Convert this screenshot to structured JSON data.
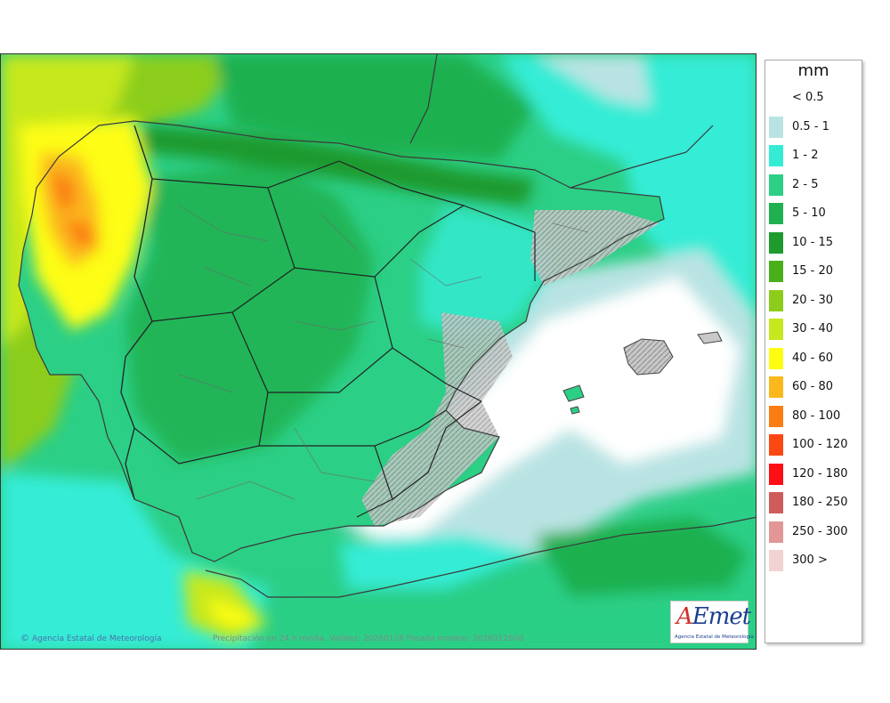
{
  "map": {
    "credit": "Agencia Estatal de Meteorología",
    "copyright_symbol": "©",
    "caption": "Precipitación en 24 h media. Validez: 20260126 Pasada modelo: 2026012600",
    "logo": {
      "mark_a": "A",
      "mark_rest": "Emet",
      "subtitle": "Agencia Estatal de Meteorología"
    }
  },
  "legend": {
    "unit": "mm",
    "items": [
      {
        "label": "< 0.5",
        "color": ""
      },
      {
        "label": "0.5 - 1",
        "color": "#b9e3e3"
      },
      {
        "label": "1 - 2",
        "color": "#34ecd6"
      },
      {
        "label": "2 - 5",
        "color": "#2ccf86"
      },
      {
        "label": "5 - 10",
        "color": "#1fb04f"
      },
      {
        "label": "10 - 15",
        "color": "#1e9a2e"
      },
      {
        "label": "15 - 20",
        "color": "#49b01b"
      },
      {
        "label": "20 - 30",
        "color": "#8ccd1c"
      },
      {
        "label": "30 - 40",
        "color": "#c6e81e"
      },
      {
        "label": "40 - 60",
        "color": "#fdfd12"
      },
      {
        "label": "60 - 80",
        "color": "#fbb81c"
      },
      {
        "label": "80 - 100",
        "color": "#fa7d13"
      },
      {
        "label": "100 - 120",
        "color": "#fb4813"
      },
      {
        "label": "120 - 180",
        "color": "#fb0f14"
      },
      {
        "label": "180 - 250",
        "color": "#cf5b5b"
      },
      {
        "label": "250 - 300",
        "color": "#e29696"
      },
      {
        "label": "300 >",
        "color": "#f2d2d2"
      }
    ]
  }
}
